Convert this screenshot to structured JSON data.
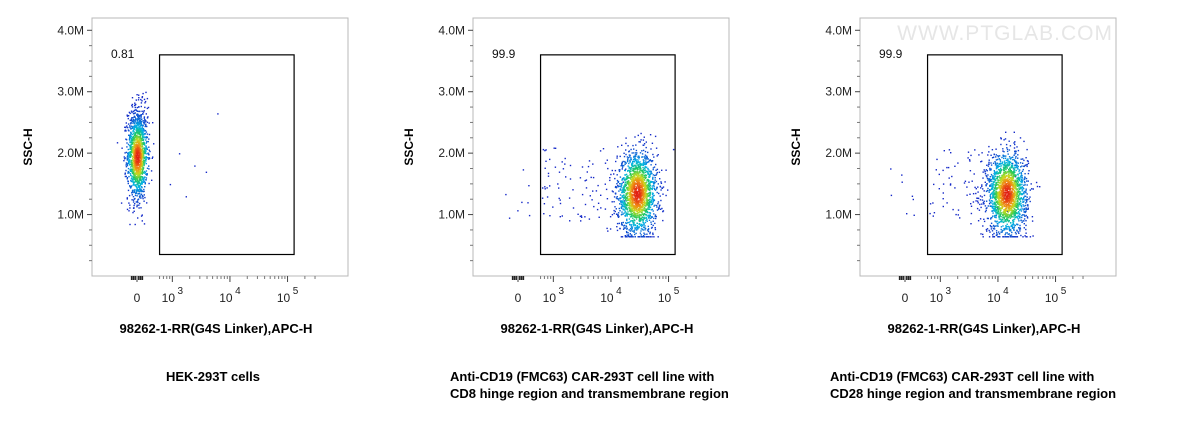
{
  "watermark": "WWW.PTGLAB.COM",
  "chart_data": [
    {
      "type": "scatter",
      "plot_style": "flow cytometry pseudocolor dot plot with rectangular gate",
      "xlabel": "98262-1-RR(G4S Linker),APC-H",
      "ylabel": "SSC-H",
      "x_scale": "biexponential",
      "x_ticks": [
        "0",
        "10^3",
        "10^4",
        "10^5"
      ],
      "y_ticks": [
        "1.0M",
        "2.0M",
        "3.0M",
        "4.0M"
      ],
      "ylim": [
        0,
        4200000
      ],
      "gate": {
        "x_range": [
          600,
          130000
        ],
        "y_range": [
          350000,
          3600000
        ]
      },
      "gate_percentage": "0.81",
      "population": {
        "x_center": 0,
        "y_center": 2000000,
        "x_spread": "narrow",
        "y_range": [
          900000,
          3000000
        ]
      },
      "caption_lines": [
        "HEK-293T cells"
      ]
    },
    {
      "type": "scatter",
      "plot_style": "flow cytometry pseudocolor dot plot with rectangular gate",
      "xlabel": "98262-1-RR(G4S Linker),APC-H",
      "ylabel": "SSC-H",
      "x_scale": "biexponential",
      "x_ticks": [
        "0",
        "10^3",
        "10^4",
        "10^5"
      ],
      "y_ticks": [
        "1.0M",
        "2.0M",
        "3.0M",
        "4.0M"
      ],
      "ylim": [
        0,
        4200000
      ],
      "gate": {
        "x_range": [
          600,
          130000
        ],
        "y_range": [
          350000,
          3600000
        ]
      },
      "gate_percentage": "99.9",
      "population": {
        "x_center": 28000,
        "y_center": 1350000,
        "y_range": [
          700000,
          2300000
        ]
      },
      "caption_lines": [
        "Anti-CD19 (FMC63) CAR-293T cell line with",
        "CD8 hinge region and transmembrane region"
      ]
    },
    {
      "type": "scatter",
      "plot_style": "flow cytometry pseudocolor dot plot with rectangular gate",
      "xlabel": "98262-1-RR(G4S Linker),APC-H",
      "ylabel": "SSC-H",
      "x_scale": "biexponential",
      "x_ticks": [
        "0",
        "10^3",
        "10^4",
        "10^5"
      ],
      "y_ticks": [
        "1.0M",
        "2.0M",
        "3.0M",
        "4.0M"
      ],
      "ylim": [
        0,
        4200000
      ],
      "gate": {
        "x_range": [
          600,
          130000
        ],
        "y_range": [
          350000,
          3600000
        ]
      },
      "gate_percentage": "99.9",
      "population": {
        "x_center": 14000,
        "y_center": 1350000,
        "y_range": [
          700000,
          2300000
        ]
      },
      "caption_lines": [
        "Anti-CD19 (FMC63) CAR-293T cell line with",
        "CD28 hinge region and transmembrane region"
      ]
    }
  ]
}
